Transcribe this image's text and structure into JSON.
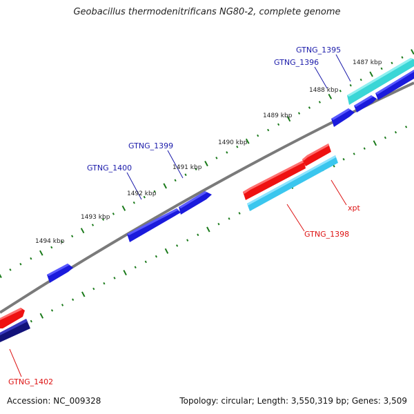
{
  "title": "Geobacillus thermodenitrificans NG80-2, complete genome",
  "footer": {
    "accession": "Accession: NC_009328",
    "summary": "Topology: circular; Length: 3,550,319 bp; Genes: 3,509"
  },
  "ticks": {
    "labels": [
      "1487 kbp",
      "1488 kbp",
      "1489 kbp",
      "1490 kbp",
      "1491 kbp",
      "1492 kbp",
      "1493 kbp",
      "1494 kbp"
    ],
    "color": "#1a7a1a"
  },
  "genes": {
    "forward": [
      {
        "id": "GTNG_1395",
        "label": "GTNG_1395",
        "color": "#3ad6d6",
        "label_color": "#1a1aaa"
      },
      {
        "id": "GTNG_1396",
        "label": "GTNG_1396",
        "color": "#1a1adc",
        "label_color": "#1a1aaa"
      },
      {
        "id": "GTNG_1399",
        "label": "GTNG_1399",
        "color": "#1a1adc",
        "label_color": "#1a1aaa"
      },
      {
        "id": "GTNG_1400",
        "label": "GTNG_1400",
        "color": "#1a1adc",
        "label_color": "#1a1aaa"
      }
    ],
    "reverse": [
      {
        "id": "xpt",
        "label": "xpt",
        "color": "#ee1111",
        "label_color": "#dd1111"
      },
      {
        "id": "GTNG_1398",
        "label": "GTNG_1398",
        "color": "#ee1111",
        "label_color": "#dd1111"
      },
      {
        "id": "GTNG_1402",
        "label": "GTNG_1402",
        "color": "#ee1111",
        "label_color": "#dd1111"
      }
    ]
  },
  "colors": {
    "backbone": "#7a7a7a",
    "forward_gene": "#1a1adc",
    "reverse_gene": "#ee1111",
    "cds_light": "#3ac6ee",
    "cds_dark": "#12127a"
  }
}
